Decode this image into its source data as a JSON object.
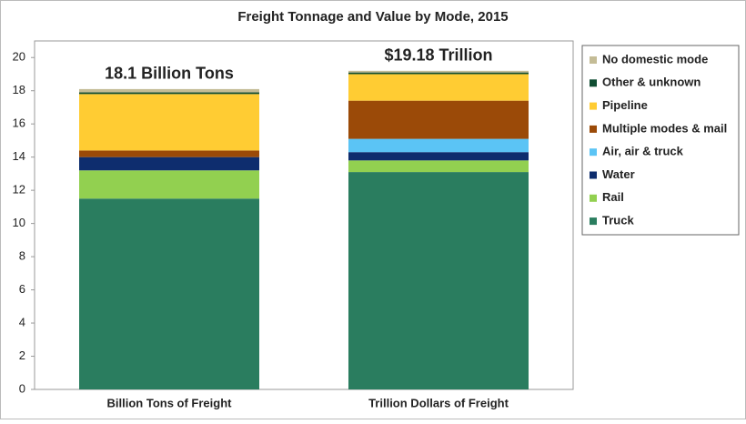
{
  "chart_data": {
    "type": "stacked_bar",
    "title": "Freight Tonnage and Value by Mode, 2015",
    "categories": [
      "Billion Tons of Freight",
      "Trillion Dollars of Freight"
    ],
    "annotations": [
      "18.1 Billion Tons",
      "$19.18 Trillion"
    ],
    "series": [
      {
        "name": "Truck",
        "color": "#2a7d5f",
        "values": [
          11.5,
          13.1
        ]
      },
      {
        "name": "Rail",
        "color": "#92d050",
        "values": [
          1.7,
          0.7
        ]
      },
      {
        "name": "Water",
        "color": "#0e2d6e",
        "values": [
          0.8,
          0.5
        ]
      },
      {
        "name": "Air, air & truck",
        "color": "#5bc4f5",
        "values": [
          0,
          0.8
        ]
      },
      {
        "name": "Multiple modes & mail",
        "color": "#9b4a08",
        "values": [
          0.4,
          2.3
        ]
      },
      {
        "name": "Pipeline",
        "color": "#ffcc33",
        "values": [
          3.4,
          1.6
        ]
      },
      {
        "name": "Other & unknown",
        "color": "#0f4d32",
        "values": [
          0.1,
          0.1
        ]
      },
      {
        "name": "No domestic mode",
        "color": "#c4bc96",
        "values": [
          0.2,
          0.1
        ]
      }
    ],
    "ylim": [
      0,
      21
    ],
    "yticks": [
      0,
      2,
      4,
      6,
      8,
      10,
      12,
      14,
      16,
      18,
      20
    ],
    "grid": false,
    "legend": "right"
  }
}
